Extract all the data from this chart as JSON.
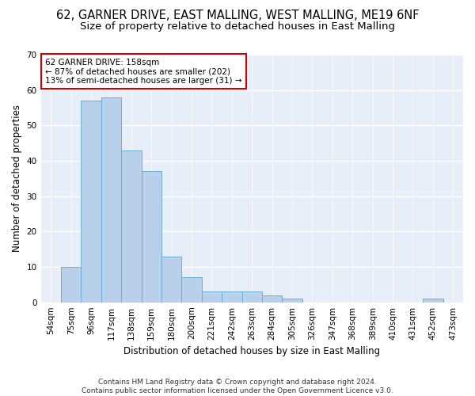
{
  "title_line1": "62, GARNER DRIVE, EAST MALLING, WEST MALLING, ME19 6NF",
  "title_line2": "Size of property relative to detached houses in East Malling",
  "xlabel": "Distribution of detached houses by size in East Malling",
  "ylabel": "Number of detached properties",
  "categories": [
    "54sqm",
    "75sqm",
    "96sqm",
    "117sqm",
    "138sqm",
    "159sqm",
    "180sqm",
    "200sqm",
    "221sqm",
    "242sqm",
    "263sqm",
    "284sqm",
    "305sqm",
    "326sqm",
    "347sqm",
    "368sqm",
    "389sqm",
    "410sqm",
    "431sqm",
    "452sqm",
    "473sqm"
  ],
  "values": [
    0,
    10,
    57,
    58,
    43,
    37,
    13,
    7,
    3,
    3,
    3,
    2,
    1,
    0,
    0,
    0,
    0,
    0,
    0,
    1,
    0
  ],
  "bar_color": "#b8d0ea",
  "bar_edge_color": "#6aaed6",
  "ylim": [
    0,
    70
  ],
  "yticks": [
    0,
    10,
    20,
    30,
    40,
    50,
    60,
    70
  ],
  "plot_bg_color": "#e8eef8",
  "fig_bg_color": "#ffffff",
  "grid_color": "#ffffff",
  "annotation_text": "62 GARNER DRIVE: 158sqm\n← 87% of detached houses are smaller (202)\n13% of semi-detached houses are larger (31) →",
  "annotation_box_color": "#ffffff",
  "annotation_box_edge": "#cc0000",
  "footer_line1": "Contains HM Land Registry data © Crown copyright and database right 2024.",
  "footer_line2": "Contains public sector information licensed under the Open Government Licence v3.0.",
  "title_fontsize": 10.5,
  "subtitle_fontsize": 9.5,
  "axis_label_fontsize": 8.5,
  "tick_fontsize": 7.5,
  "annotation_fontsize": 7.5,
  "footer_fontsize": 6.5
}
